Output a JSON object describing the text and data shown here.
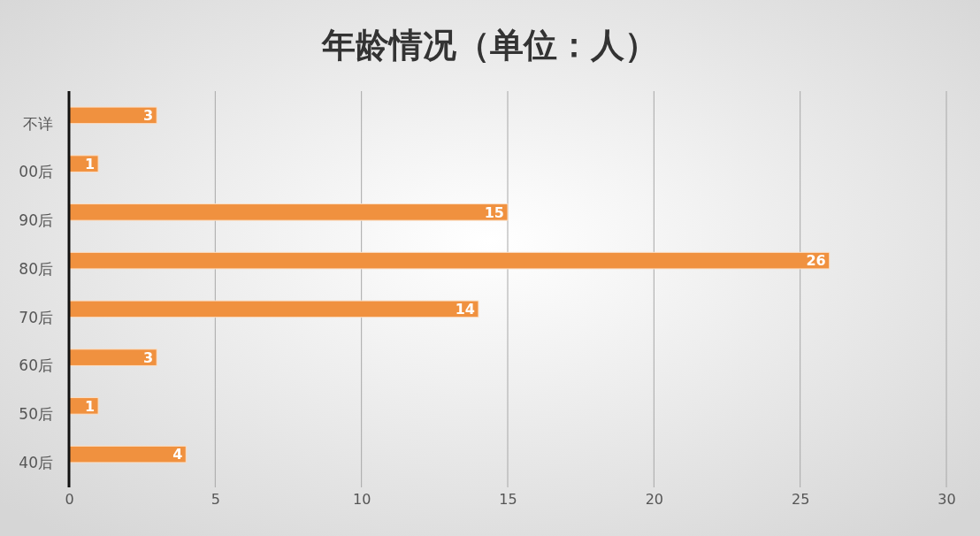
{
  "chart_data": {
    "type": "bar",
    "orientation": "horizontal",
    "title": "年龄情况（单位：人）",
    "categories": [
      "不详",
      "00后",
      "90后",
      "80后",
      "70后",
      "60后",
      "50后",
      "40后"
    ],
    "values": [
      3,
      1,
      15,
      26,
      14,
      3,
      1,
      4
    ],
    "color": "#f0913f",
    "xlim": [
      0,
      30
    ],
    "xticks": [
      0,
      5,
      10,
      15,
      20,
      25,
      30
    ],
    "grid": "x",
    "data_labels": true
  }
}
